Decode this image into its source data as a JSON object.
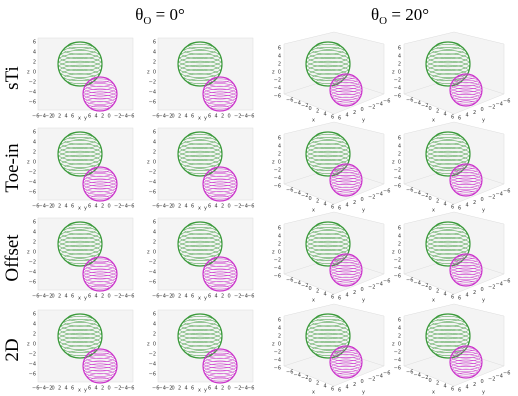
{
  "column_headers": [
    {
      "symbol": "θ",
      "subscript": "O",
      "value": " = 0°"
    },
    {
      "symbol": "θ",
      "subscript": "O",
      "value": " = 20°"
    }
  ],
  "row_labels": [
    "sTi",
    "Toe-in",
    "Offset",
    "2D"
  ],
  "axis_labels": {
    "x": "x",
    "y": "y",
    "z": "z"
  },
  "axis_ticks": {
    "z": [
      "6",
      "4",
      "2",
      "0",
      "−2",
      "−4",
      "−6"
    ],
    "x": [
      "−6",
      "−4",
      "−2",
      "0",
      "2",
      "4",
      "6"
    ],
    "y": [
      "6",
      "4",
      "2",
      "0",
      "−2",
      "−4",
      "−6"
    ]
  }
}
